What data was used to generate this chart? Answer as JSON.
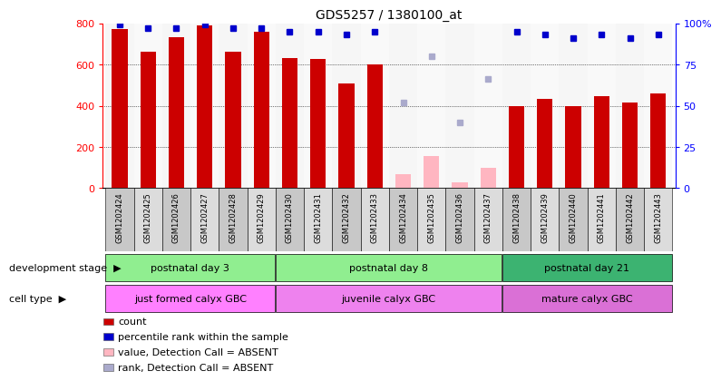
{
  "title": "GDS5257 / 1380100_at",
  "samples": [
    "GSM1202424",
    "GSM1202425",
    "GSM1202426",
    "GSM1202427",
    "GSM1202428",
    "GSM1202429",
    "GSM1202430",
    "GSM1202431",
    "GSM1202432",
    "GSM1202433",
    "GSM1202434",
    "GSM1202435",
    "GSM1202436",
    "GSM1202437",
    "GSM1202438",
    "GSM1202439",
    "GSM1202440",
    "GSM1202441",
    "GSM1202442",
    "GSM1202443"
  ],
  "count_present": [
    770,
    660,
    730,
    790,
    660,
    760,
    630,
    625,
    510,
    600,
    null,
    null,
    null,
    null,
    400,
    435,
    400,
    445,
    415,
    460
  ],
  "count_absent": [
    null,
    null,
    null,
    null,
    null,
    null,
    null,
    null,
    null,
    null,
    70,
    155,
    30,
    100,
    null,
    null,
    null,
    null,
    null,
    null
  ],
  "rank_present": [
    99,
    97,
    97,
    99,
    97,
    97,
    95,
    95,
    93,
    95,
    null,
    null,
    null,
    null,
    95,
    93,
    91,
    93,
    91,
    93
  ],
  "rank_absent": [
    null,
    null,
    null,
    null,
    null,
    null,
    null,
    null,
    null,
    null,
    52,
    80,
    40,
    66,
    null,
    null,
    null,
    null,
    null,
    null
  ],
  "bar_color_present": "#CC0000",
  "bar_color_absent": "#FFB6C1",
  "rank_color_present": "#0000CC",
  "rank_color_absent": "#AAAACC",
  "ylim_left": [
    0,
    800
  ],
  "ylim_right": [
    0,
    100
  ],
  "yticks_left": [
    0,
    200,
    400,
    600,
    800
  ],
  "yticks_right": [
    0,
    25,
    50,
    75,
    100
  ],
  "yticklabels_left": [
    "0",
    "200",
    "400",
    "600",
    "800"
  ],
  "yticklabels_right": [
    "0",
    "25",
    "50",
    "75",
    "100%"
  ],
  "dev_stages": [
    {
      "label": "postnatal day 3",
      "start": 0,
      "end": 6,
      "color": "#90EE90"
    },
    {
      "label": "postnatal day 8",
      "start": 6,
      "end": 14,
      "color": "#90EE90"
    },
    {
      "label": "postnatal day 21",
      "start": 14,
      "end": 20,
      "color": "#3CB371"
    }
  ],
  "cell_types": [
    {
      "label": "just formed calyx GBC",
      "start": 0,
      "end": 6,
      "color": "#FF80FF"
    },
    {
      "label": "juvenile calyx GBC",
      "start": 6,
      "end": 14,
      "color": "#EE82EE"
    },
    {
      "label": "mature calyx GBC",
      "start": 14,
      "end": 20,
      "color": "#DA70D6"
    }
  ],
  "legend_items": [
    {
      "label": "count",
      "color": "#CC0000"
    },
    {
      "label": "percentile rank within the sample",
      "color": "#0000CC"
    },
    {
      "label": "value, Detection Call = ABSENT",
      "color": "#FFB6C1"
    },
    {
      "label": "rank, Detection Call = ABSENT",
      "color": "#AAAACC"
    }
  ],
  "dev_stage_label": "development stage",
  "cell_type_label": "cell type",
  "col_bg_even": "#C8C8C8",
  "col_bg_odd": "#DCDCDC",
  "plot_bg": "#FFFFFF"
}
